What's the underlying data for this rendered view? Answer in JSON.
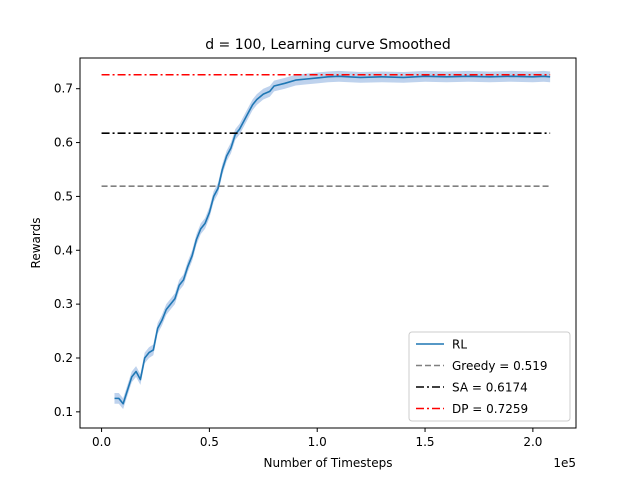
{
  "chart_data": {
    "type": "line",
    "title": "d = 100, Learning curve Smoothed",
    "xlabel": "Number of Timesteps",
    "ylabel": "Rewards",
    "x_offset_label": "1e5",
    "xlim": [
      -0.1,
      2.2
    ],
    "ylim": [
      0.07,
      0.757
    ],
    "x_scale_note": "x in units of 1e5 timesteps",
    "x_ticks": [
      0.0,
      0.5,
      1.0,
      1.5,
      2.0
    ],
    "x_tick_labels": [
      "0.0",
      "0.5",
      "1.0",
      "1.5",
      "2.0"
    ],
    "y_ticks": [
      0.1,
      0.2,
      0.3,
      0.4,
      0.5,
      0.6,
      0.7
    ],
    "y_tick_labels": [
      "0.1",
      "0.2",
      "0.3",
      "0.4",
      "0.5",
      "0.6",
      "0.7"
    ],
    "grid": false,
    "legend_position": "lower-right",
    "series": [
      {
        "name": "RL",
        "color": "#1f77b4",
        "band_color": "#aec7e8",
        "x": [
          0.06,
          0.08,
          0.1,
          0.12,
          0.14,
          0.16,
          0.18,
          0.2,
          0.22,
          0.24,
          0.26,
          0.28,
          0.3,
          0.32,
          0.34,
          0.36,
          0.38,
          0.4,
          0.42,
          0.44,
          0.46,
          0.48,
          0.5,
          0.52,
          0.54,
          0.56,
          0.58,
          0.6,
          0.62,
          0.64,
          0.66,
          0.68,
          0.7,
          0.72,
          0.75,
          0.78,
          0.8,
          0.85,
          0.9,
          0.95,
          1.0,
          1.05,
          1.1,
          1.2,
          1.3,
          1.4,
          1.5,
          1.6,
          1.7,
          1.8,
          1.9,
          2.0,
          2.05,
          2.08
        ],
        "values": [
          0.125,
          0.125,
          0.115,
          0.14,
          0.165,
          0.175,
          0.16,
          0.2,
          0.21,
          0.215,
          0.255,
          0.27,
          0.29,
          0.3,
          0.31,
          0.335,
          0.345,
          0.37,
          0.39,
          0.42,
          0.44,
          0.45,
          0.47,
          0.5,
          0.515,
          0.55,
          0.575,
          0.59,
          0.615,
          0.625,
          0.64,
          0.655,
          0.67,
          0.68,
          0.69,
          0.695,
          0.705,
          0.71,
          0.716,
          0.718,
          0.72,
          0.722,
          0.723,
          0.721,
          0.722,
          0.721,
          0.723,
          0.722,
          0.723,
          0.722,
          0.723,
          0.722,
          0.723,
          0.722
        ],
        "band_halfwidth": 0.01
      },
      {
        "name": "Greedy = 0.519",
        "color": "#808080",
        "dash": "dashed",
        "x": [
          0.0,
          2.08
        ],
        "values": [
          0.519,
          0.519
        ]
      },
      {
        "name": "SA = 0.6174",
        "color": "#000000",
        "dash": "dashdot",
        "x": [
          0.0,
          2.08
        ],
        "values": [
          0.6174,
          0.6174
        ]
      },
      {
        "name": "DP = 0.7259",
        "color": "#ff0000",
        "dash": "dashdot",
        "x": [
          0.0,
          2.08
        ],
        "values": [
          0.7259,
          0.7259
        ]
      }
    ]
  }
}
